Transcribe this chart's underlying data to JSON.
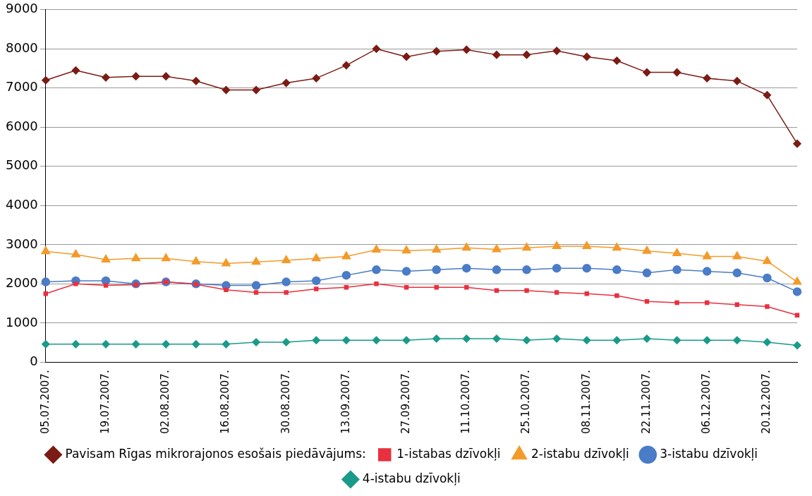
{
  "chart_data": {
    "type": "line",
    "categories": [
      "05.07.2007.",
      null,
      "19.07.2007.",
      null,
      "02.08.2007.",
      null,
      "16.08.2007.",
      null,
      "30.08.2007.",
      null,
      "13.09.2007.",
      null,
      "27.09.2007.",
      null,
      "11.10.2007.",
      null,
      "25.10.2007.",
      null,
      "08.11.2007.",
      null,
      "22.11.2007.",
      null,
      "06.12.2007.",
      null,
      "20.12.2007.",
      null
    ],
    "ylim": [
      0,
      9000
    ],
    "yticks": [
      0,
      1000,
      2000,
      3000,
      4000,
      5000,
      6000,
      7000,
      8000,
      9000
    ],
    "grid": "y",
    "legend": "bottom",
    "series": [
      {
        "name": "Pavisam Rīgas mikrorajonos esošais piedāvājums:",
        "color": "#7b1c14",
        "marker": "diamond",
        "values": [
          7200,
          7450,
          7270,
          7300,
          7300,
          7180,
          6950,
          6950,
          7130,
          7250,
          7580,
          8000,
          7800,
          7940,
          7980,
          7850,
          7850,
          7950,
          7800,
          7700,
          7400,
          7400,
          7250,
          7180,
          6820,
          5580
        ]
      },
      {
        "name": "1-istabas dzīvokļi",
        "color": "#e8303f",
        "marker": "square",
        "values": [
          1750,
          2000,
          1960,
          1980,
          2050,
          1990,
          1850,
          1780,
          1780,
          1870,
          1910,
          2000,
          1910,
          1910,
          1910,
          1830,
          1830,
          1780,
          1750,
          1700,
          1550,
          1520,
          1520,
          1470,
          1420,
          1200
        ]
      },
      {
        "name": "2-istabu dzīvokļi",
        "color": "#f39a2a",
        "marker": "triangle",
        "values": [
          2830,
          2750,
          2620,
          2650,
          2650,
          2570,
          2520,
          2560,
          2600,
          2650,
          2700,
          2870,
          2850,
          2870,
          2920,
          2880,
          2920,
          2960,
          2960,
          2920,
          2840,
          2780,
          2700,
          2700,
          2580,
          2050
        ]
      },
      {
        "name": "3-istabu dzīvokļi",
        "color": "#4a7cc7",
        "marker": "circle",
        "values": [
          2050,
          2080,
          2080,
          2000,
          2050,
          2000,
          1960,
          1960,
          2050,
          2080,
          2220,
          2360,
          2320,
          2360,
          2400,
          2360,
          2360,
          2400,
          2400,
          2360,
          2280,
          2360,
          2320,
          2280,
          2150,
          1800
        ]
      },
      {
        "name": "4-istabu dzīvokļi",
        "color": "#1a9a8a",
        "marker": "diamond",
        "values": [
          460,
          460,
          460,
          460,
          460,
          460,
          460,
          510,
          510,
          560,
          560,
          560,
          560,
          600,
          600,
          600,
          560,
          600,
          560,
          560,
          600,
          560,
          560,
          560,
          510,
          430
        ]
      }
    ]
  }
}
